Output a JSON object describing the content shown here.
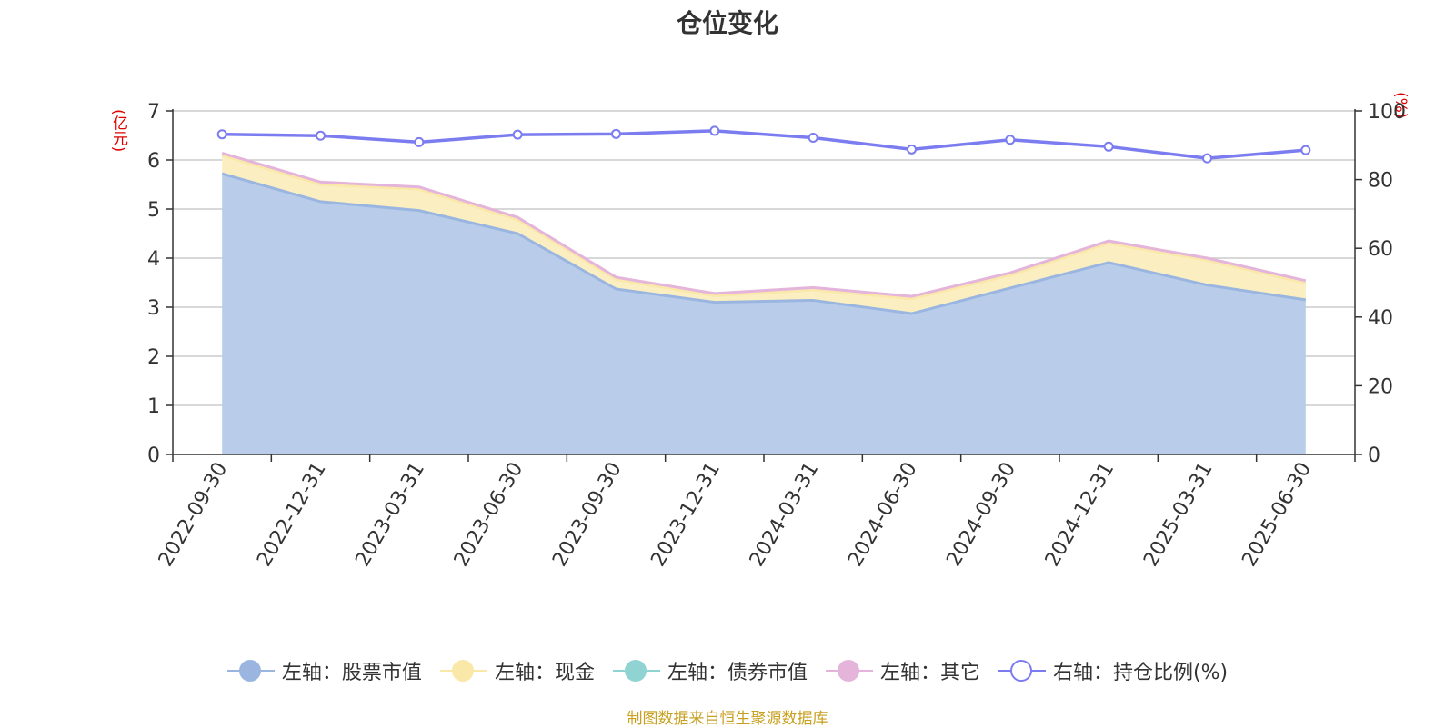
{
  "title": "仓位变化",
  "left_unit": "(亿元)",
  "right_unit": "(%)",
  "source": "制图数据来自恒生聚源数据库",
  "colors": {
    "stock": "#9ab6e0",
    "stock_fill": "#b9cdea",
    "cash": "#f9e8a8",
    "cash_fill": "#fbeec0",
    "bond": "#8fd3d3",
    "other": "#e4b4da",
    "ratio": "#7b7cf0",
    "grid": "#cccccc",
    "axis": "#333333"
  },
  "legend": [
    {
      "label": "左轴：股票市值",
      "key": "stock",
      "hollow": false
    },
    {
      "label": "左轴：现金",
      "key": "cash",
      "hollow": false
    },
    {
      "label": "左轴：债券市值",
      "key": "bond",
      "hollow": false
    },
    {
      "label": "左轴：其它",
      "key": "other",
      "hollow": false
    },
    {
      "label": "右轴：持仓比例(%)",
      "key": "ratio",
      "hollow": true
    }
  ],
  "chart_data": {
    "type": "area",
    "title": "仓位变化",
    "categories": [
      "2022-09-30",
      "2022-12-31",
      "2023-03-31",
      "2023-06-30",
      "2023-09-30",
      "2023-12-31",
      "2024-03-31",
      "2024-06-30",
      "2024-09-30",
      "2024-12-31",
      "2025-03-31",
      "2025-06-30"
    ],
    "left_axis": {
      "unit": "(亿元)",
      "min": 0,
      "max": 7,
      "ticks": [
        0,
        1,
        2,
        3,
        4,
        5,
        6,
        7
      ]
    },
    "right_axis": {
      "unit": "(%)",
      "min": 0,
      "max": 100,
      "ticks": [
        0,
        20,
        40,
        60,
        80,
        100
      ]
    },
    "stacked": true,
    "series": [
      {
        "name": "左轴：股票市值",
        "axis": "left",
        "values": [
          5.72,
          5.15,
          4.97,
          4.5,
          3.37,
          3.1,
          3.14,
          2.87,
          3.39,
          3.91,
          3.45,
          3.15
        ]
      },
      {
        "name": "左轴：现金",
        "axis": "left",
        "values": [
          0.37,
          0.35,
          0.43,
          0.28,
          0.19,
          0.13,
          0.21,
          0.3,
          0.26,
          0.39,
          0.5,
          0.34
        ]
      },
      {
        "name": "左轴：债券市值",
        "axis": "left",
        "values": [
          0,
          0,
          0,
          0,
          0,
          0,
          0,
          0,
          0,
          0,
          0,
          0
        ]
      },
      {
        "name": "左轴：其它",
        "axis": "left",
        "values": [
          0.05,
          0.05,
          0.05,
          0.05,
          0.05,
          0.05,
          0.05,
          0.05,
          0.05,
          0.05,
          0.05,
          0.05
        ]
      },
      {
        "name": "右轴：持仓比例(%)",
        "axis": "right",
        "type": "line",
        "values": [
          93.2,
          92.8,
          90.9,
          93.1,
          93.3,
          94.2,
          92.2,
          88.8,
          91.6,
          89.6,
          86.2,
          88.6
        ]
      }
    ],
    "grid": true,
    "legend_position": "bottom"
  }
}
